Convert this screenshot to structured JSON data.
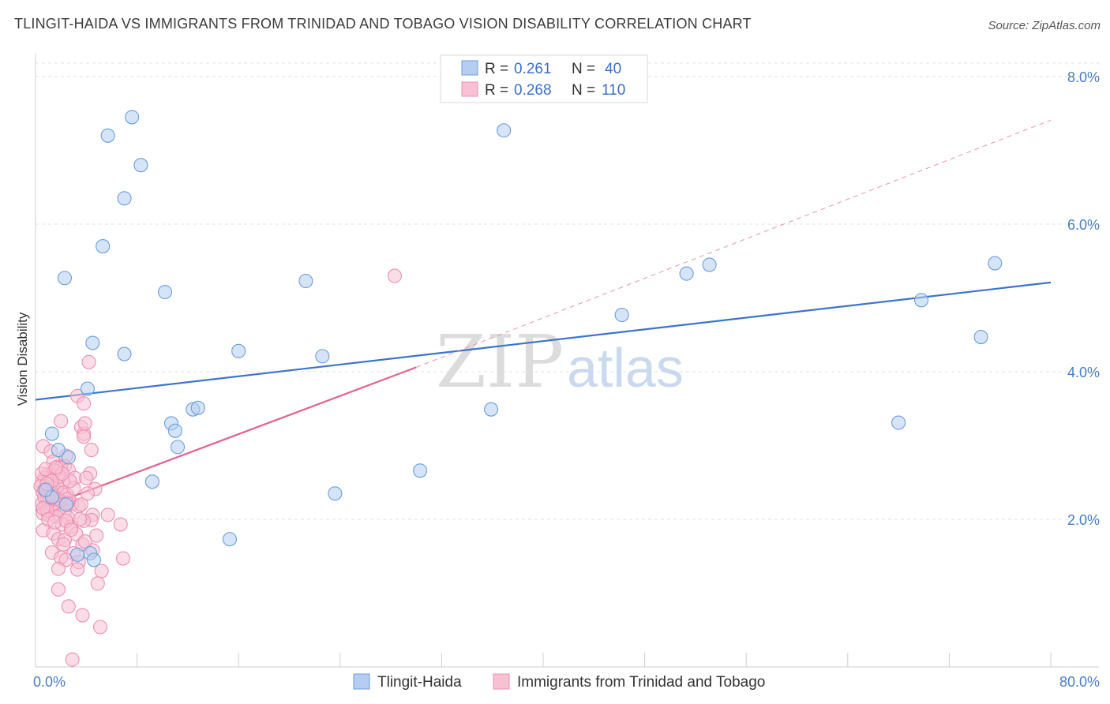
{
  "header": {
    "title": "TLINGIT-HAIDA VS IMMIGRANTS FROM TRINIDAD AND TOBAGO VISION DISABILITY CORRELATION CHART",
    "source": "Source: ZipAtlas.com"
  },
  "watermark": {
    "part1": "ZIP",
    "part2": "atlas"
  },
  "legend_box": {
    "rows": [
      {
        "r_label": "R = ",
        "r_value": "0.261",
        "n_label": "N = ",
        "n_value": "40"
      },
      {
        "r_label": "R = ",
        "r_value": "0.268",
        "n_label": "N = ",
        "n_value": "110"
      }
    ]
  },
  "chart_data": {
    "type": "scatter",
    "title": "TLINGIT-HAIDA VS IMMIGRANTS FROM TRINIDAD AND TOBAGO VISION DISABILITY CORRELATION CHART",
    "xlabel": "",
    "ylabel": "Vision Disability",
    "xlim": [
      0,
      80
    ],
    "ylim": [
      0,
      8.0
    ],
    "x_tick_labels": [
      "0.0%",
      "80.0%"
    ],
    "y_ticks": [
      2.0,
      4.0,
      6.0,
      8.0
    ],
    "y_tick_labels": [
      "2.0%",
      "4.0%",
      "6.0%",
      "8.0%"
    ],
    "grid": true,
    "legend_position": "bottom-center",
    "series": [
      {
        "name": "Tlingit-Haida",
        "color": "#6a9ee0",
        "fill": "#b5cdf0",
        "trend": {
          "x": [
            0,
            80
          ],
          "y": [
            3.62,
            5.21
          ],
          "color": "#3a74cf"
        },
        "points": [
          [
            7.6,
            7.45
          ],
          [
            5.7,
            7.2
          ],
          [
            8.3,
            6.8
          ],
          [
            7.0,
            6.35
          ],
          [
            36.9,
            7.27
          ],
          [
            5.3,
            5.7
          ],
          [
            2.3,
            5.27
          ],
          [
            10.2,
            5.08
          ],
          [
            21.3,
            5.23
          ],
          [
            51.3,
            5.33
          ],
          [
            53.1,
            5.45
          ],
          [
            46.2,
            4.77
          ],
          [
            75.6,
            5.47
          ],
          [
            69.8,
            4.97
          ],
          [
            74.5,
            4.47
          ],
          [
            4.5,
            4.39
          ],
          [
            7.0,
            4.24
          ],
          [
            16.0,
            4.28
          ],
          [
            22.6,
            4.21
          ],
          [
            4.1,
            3.77
          ],
          [
            12.4,
            3.49
          ],
          [
            12.8,
            3.51
          ],
          [
            10.7,
            3.3
          ],
          [
            11.0,
            3.2
          ],
          [
            11.2,
            2.98
          ],
          [
            1.3,
            3.16
          ],
          [
            1.8,
            2.94
          ],
          [
            2.6,
            2.84
          ],
          [
            35.9,
            3.49
          ],
          [
            30.3,
            2.66
          ],
          [
            68.0,
            3.31
          ],
          [
            9.2,
            2.51
          ],
          [
            23.6,
            2.35
          ],
          [
            15.3,
            1.73
          ],
          [
            4.3,
            1.54
          ],
          [
            4.6,
            1.45
          ],
          [
            2.4,
            2.2
          ],
          [
            1.3,
            2.3
          ],
          [
            0.8,
            2.4
          ],
          [
            3.3,
            1.52
          ]
        ]
      },
      {
        "name": "Immigrants from Trinidad and Tobago",
        "color": "#ef8fb0",
        "fill": "#f6c1d3",
        "trend": {
          "x": [
            0,
            30
          ],
          "y": [
            2.12,
            4.06
          ],
          "color": "#e5608c",
          "dashed_extension": {
            "x": [
              30,
              80
            ],
            "y": [
              4.06,
              7.41
            ]
          }
        },
        "points": [
          [
            28.3,
            5.3
          ],
          [
            4.2,
            4.13
          ],
          [
            3.3,
            3.67
          ],
          [
            3.8,
            3.57
          ],
          [
            2.0,
            3.33
          ],
          [
            3.6,
            3.25
          ],
          [
            3.8,
            3.16
          ],
          [
            3.8,
            3.12
          ],
          [
            3.9,
            3.3
          ],
          [
            0.6,
            2.99
          ],
          [
            1.2,
            2.92
          ],
          [
            2.4,
            2.86
          ],
          [
            4.4,
            2.94
          ],
          [
            1.4,
            2.78
          ],
          [
            2.3,
            2.72
          ],
          [
            1.7,
            2.71
          ],
          [
            2.0,
            2.7
          ],
          [
            1.0,
            2.61
          ],
          [
            1.5,
            2.66
          ],
          [
            2.6,
            2.67
          ],
          [
            4.3,
            2.62
          ],
          [
            0.7,
            2.56
          ],
          [
            0.5,
            2.5
          ],
          [
            1.1,
            2.55
          ],
          [
            2.2,
            2.51
          ],
          [
            3.1,
            2.56
          ],
          [
            4.0,
            2.56
          ],
          [
            0.4,
            2.45
          ],
          [
            1.0,
            2.42
          ],
          [
            1.7,
            2.38
          ],
          [
            0.6,
            2.36
          ],
          [
            1.5,
            2.35
          ],
          [
            2.5,
            2.33
          ],
          [
            4.7,
            2.41
          ],
          [
            0.9,
            2.29
          ],
          [
            1.2,
            2.26
          ],
          [
            1.8,
            2.24
          ],
          [
            2.9,
            2.21
          ],
          [
            3.4,
            2.18
          ],
          [
            0.5,
            2.21
          ],
          [
            0.8,
            2.18
          ],
          [
            1.4,
            2.15
          ],
          [
            1.9,
            2.13
          ],
          [
            2.3,
            2.1
          ],
          [
            0.6,
            2.08
          ],
          [
            1.0,
            2.06
          ],
          [
            1.6,
            2.04
          ],
          [
            2.6,
            2.02
          ],
          [
            4.5,
            2.06
          ],
          [
            5.7,
            2.06
          ],
          [
            3.6,
            2.2
          ],
          [
            4.4,
            1.99
          ],
          [
            3.8,
            1.98
          ],
          [
            2.1,
            1.93
          ],
          [
            2.8,
            1.9
          ],
          [
            6.7,
            1.93
          ],
          [
            0.6,
            1.85
          ],
          [
            1.4,
            1.81
          ],
          [
            3.2,
            1.8
          ],
          [
            4.8,
            1.78
          ],
          [
            1.8,
            1.73
          ],
          [
            2.3,
            1.72
          ],
          [
            3.7,
            1.66
          ],
          [
            2.2,
            1.66
          ],
          [
            1.3,
            1.55
          ],
          [
            3.0,
            1.54
          ],
          [
            4.5,
            1.58
          ],
          [
            2.0,
            1.48
          ],
          [
            2.4,
            1.45
          ],
          [
            3.4,
            1.42
          ],
          [
            6.9,
            1.47
          ],
          [
            1.8,
            1.33
          ],
          [
            3.3,
            1.32
          ],
          [
            5.2,
            1.3
          ],
          [
            1.8,
            1.05
          ],
          [
            4.9,
            1.13
          ],
          [
            2.6,
            0.82
          ],
          [
            3.7,
            0.7
          ],
          [
            5.1,
            0.54
          ],
          [
            2.9,
            0.1
          ],
          [
            1.1,
            2.3
          ],
          [
            1.3,
            2.2
          ],
          [
            1.6,
            2.28
          ],
          [
            2.0,
            2.25
          ],
          [
            0.7,
            2.3
          ],
          [
            0.9,
            2.12
          ],
          [
            1.2,
            2.4
          ],
          [
            1.7,
            2.45
          ],
          [
            2.2,
            2.36
          ],
          [
            2.6,
            2.28
          ],
          [
            3.0,
            2.42
          ],
          [
            0.5,
            2.62
          ],
          [
            0.8,
            2.68
          ],
          [
            1.9,
            2.58
          ],
          [
            2.7,
            2.52
          ],
          [
            0.6,
            2.15
          ],
          [
            1.0,
            2.0
          ],
          [
            1.5,
            1.96
          ],
          [
            2.4,
            1.98
          ],
          [
            3.5,
            2.0
          ],
          [
            0.7,
            2.4
          ],
          [
            1.3,
            2.52
          ],
          [
            2.1,
            2.62
          ],
          [
            2.8,
            1.86
          ],
          [
            3.9,
            1.7
          ],
          [
            1.6,
            2.7
          ],
          [
            4.1,
            2.35
          ],
          [
            0.9,
            2.48
          ],
          [
            1.4,
            2.32
          ],
          [
            2.5,
            2.22
          ]
        ]
      }
    ]
  },
  "bottom_legend": {
    "items": [
      {
        "label": "Tlingit-Haida"
      },
      {
        "label": "Immigrants from Trinidad and Tobago"
      }
    ]
  }
}
